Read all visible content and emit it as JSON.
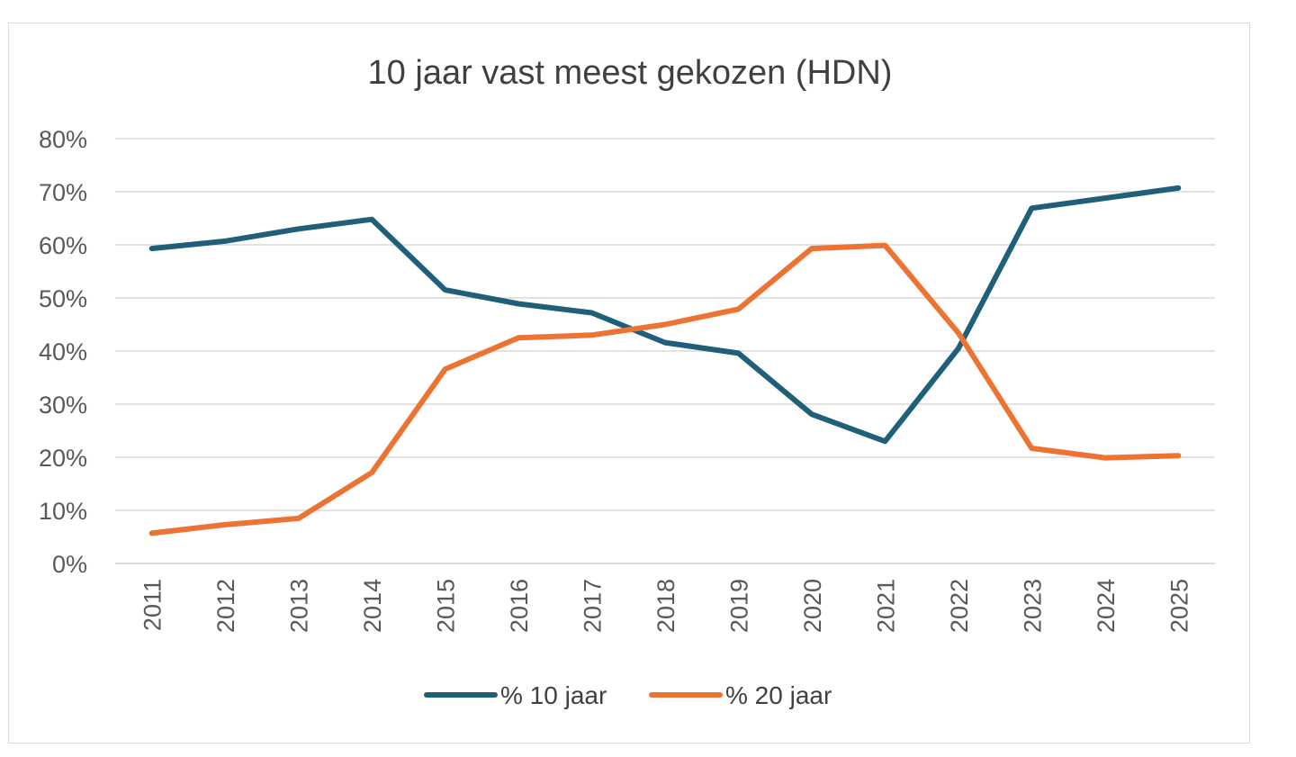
{
  "chart_data": {
    "type": "line",
    "title": "10 jaar vast meest gekozen (HDN)",
    "xlabel": "",
    "ylabel": "",
    "categories": [
      "2011",
      "2012",
      "2013",
      "2014",
      "2015",
      "2016",
      "2017",
      "2018",
      "2019",
      "2020",
      "2021",
      "2022",
      "2023",
      "2024",
      "2025"
    ],
    "series": [
      {
        "name": "% 10 jaar",
        "color": "#1f5f7a",
        "values": [
          59.3,
          60.7,
          63.0,
          64.8,
          51.5,
          48.9,
          47.2,
          41.6,
          39.6,
          28.1,
          23.0,
          40.5,
          66.9,
          68.8,
          70.7
        ]
      },
      {
        "name": "% 20 jaar",
        "color": "#ed7332",
        "values": [
          5.7,
          7.3,
          8.5,
          17.1,
          36.6,
          42.5,
          43.0,
          45.0,
          47.9,
          59.3,
          59.9,
          43.4,
          21.7,
          19.9,
          20.3
        ]
      }
    ],
    "ylim": [
      0,
      80
    ],
    "yticks": [
      0,
      10,
      20,
      30,
      40,
      50,
      60,
      70,
      80
    ],
    "ytick_labels": [
      "0%",
      "10%",
      "20%",
      "30%",
      "40%",
      "50%",
      "60%",
      "70%",
      "80%"
    ],
    "grid": "horizontal",
    "legend_position": "bottom"
  }
}
